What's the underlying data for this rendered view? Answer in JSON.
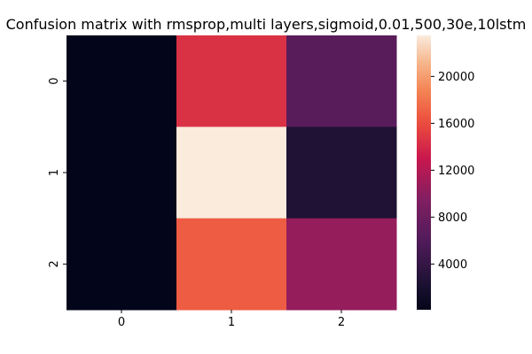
{
  "chart_data": {
    "type": "heatmap",
    "title": "Confusion matrix with rmsprop,multi layers,sigmoid,0.01,500,30e,10lstm",
    "xlabel": "",
    "ylabel": "",
    "x_categories": [
      "0",
      "1",
      "2"
    ],
    "y_categories": [
      "0",
      "1",
      "2"
    ],
    "values": [
      [
        100,
        14500,
        6500
      ],
      [
        100,
        23500,
        2500
      ],
      [
        100,
        16800,
        10500
      ]
    ],
    "colorbar": {
      "range": [
        100,
        23500
      ],
      "ticks": [
        4000,
        8000,
        12000,
        16000,
        20000
      ],
      "tick_labels": [
        "4000",
        "8000",
        "12000",
        "16000",
        "20000"
      ]
    },
    "colormap": "rocket",
    "grid": false,
    "legend": "colorbar-right"
  }
}
